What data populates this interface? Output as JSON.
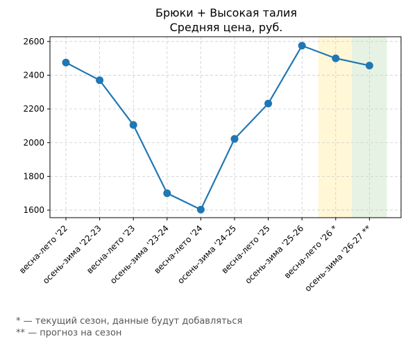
{
  "chart_data": {
    "type": "line",
    "title": "Брюки + Высокая талия",
    "subtitle": "Средняя цена, руб.",
    "xlabel": "",
    "ylabel": "",
    "categories": [
      "весна-лето '22",
      "осень-зима '22-23",
      "весна-лето '23",
      "осень-зима '23-24",
      "весна-лето '24",
      "осень-зима '24-25",
      "весна-лето '25",
      "осень-зима '25-26",
      "весна-лето '26 *",
      "осень-зима '26-27 **"
    ],
    "series": [
      {
        "values": [
          2475,
          2370,
          2105,
          1700,
          1603,
          2022,
          2232,
          2575,
          2500,
          2457
        ]
      }
    ],
    "ylim": [
      1555,
      2628
    ],
    "yticks": [
      1600,
      1800,
      2000,
      2200,
      2400,
      2600
    ],
    "grid": true,
    "line_color": "#1f77b4",
    "highlight_bands": [
      {
        "category": "весна-лето '26 *",
        "color": "#fff7d6"
      },
      {
        "category": "осень-зима '26-27 **",
        "color": "#e6f2e3"
      }
    ]
  },
  "footnotes": {
    "current": "* — текущий сезон, данные будут добавляться",
    "forecast": "** — прогноз на сезон"
  }
}
